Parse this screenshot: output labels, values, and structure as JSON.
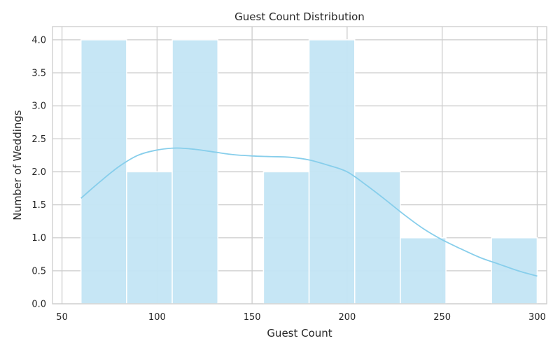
{
  "chart_data": {
    "type": "histogram",
    "title": "Guest Count Distribution",
    "xlabel": "Guest Count",
    "ylabel": "Number of Weddings",
    "xlim": [
      45,
      305
    ],
    "ylim": [
      0,
      4.2
    ],
    "xticks": [
      50,
      100,
      150,
      200,
      250,
      300
    ],
    "yticks": [
      0.0,
      0.5,
      1.0,
      1.5,
      2.0,
      2.5,
      3.0,
      3.5,
      4.0
    ],
    "bins": [
      {
        "start": 60,
        "end": 84,
        "count": 4
      },
      {
        "start": 84,
        "end": 108,
        "count": 2
      },
      {
        "start": 108,
        "end": 132,
        "count": 4
      },
      {
        "start": 132,
        "end": 156,
        "count": 0
      },
      {
        "start": 156,
        "end": 180,
        "count": 2
      },
      {
        "start": 180,
        "end": 204,
        "count": 4
      },
      {
        "start": 204,
        "end": 228,
        "count": 2
      },
      {
        "start": 228,
        "end": 252,
        "count": 1
      },
      {
        "start": 252,
        "end": 276,
        "count": 0
      },
      {
        "start": 276,
        "end": 300,
        "count": 1
      }
    ],
    "kde": {
      "x": [
        60,
        70,
        80,
        90,
        100,
        110,
        120,
        130,
        140,
        150,
        160,
        170,
        180,
        190,
        200,
        210,
        220,
        230,
        240,
        250,
        260,
        270,
        280,
        290,
        300
      ],
      "y": [
        1.6,
        1.85,
        2.08,
        2.25,
        2.33,
        2.36,
        2.34,
        2.3,
        2.26,
        2.24,
        2.23,
        2.22,
        2.18,
        2.1,
        2.0,
        1.8,
        1.58,
        1.35,
        1.14,
        0.97,
        0.83,
        0.7,
        0.6,
        0.5,
        0.42
      ]
    },
    "grid": true,
    "colors": {
      "bar_fill": "#c3e5f4",
      "bar_edge": "#ffffff",
      "kde_line": "#87ceeb",
      "grid": "#cccccc",
      "axis_edge": "#cccccc"
    }
  }
}
